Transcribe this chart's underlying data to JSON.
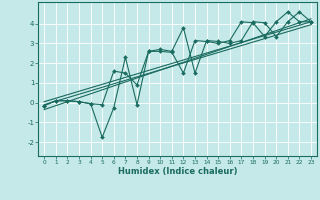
{
  "title": "",
  "xlabel": "Humidex (Indice chaleur)",
  "ylabel": "",
  "bg_color": "#c5e8e8",
  "line_color": "#1a6b60",
  "grid_color": "#ffffff",
  "xlim": [
    -0.5,
    23.5
  ],
  "ylim": [
    -2.7,
    5.1
  ],
  "yticks": [
    -2,
    -1,
    0,
    1,
    2,
    3,
    4
  ],
  "xticks": [
    0,
    1,
    2,
    3,
    4,
    5,
    6,
    7,
    8,
    9,
    10,
    11,
    12,
    13,
    14,
    15,
    16,
    17,
    18,
    19,
    20,
    21,
    22,
    23
  ],
  "line1_x": [
    0,
    1,
    2,
    3,
    4,
    5,
    6,
    7,
    8,
    9,
    10,
    11,
    12,
    13,
    14,
    15,
    16,
    17,
    18,
    19,
    20,
    21,
    22,
    23
  ],
  "line1_y": [
    -0.15,
    0.1,
    0.1,
    0.05,
    -0.05,
    -1.75,
    -0.25,
    2.3,
    -0.1,
    2.6,
    2.7,
    2.6,
    3.8,
    1.5,
    3.15,
    3.1,
    3.0,
    3.15,
    4.1,
    4.05,
    3.35,
    4.1,
    4.6,
    4.1
  ],
  "line2_x": [
    0,
    1,
    2,
    3,
    4,
    5,
    6,
    7,
    8,
    9,
    10,
    11,
    12,
    13,
    14,
    15,
    16,
    17,
    18,
    19,
    20,
    21,
    22,
    23
  ],
  "line2_y": [
    -0.15,
    0.1,
    0.1,
    0.05,
    -0.05,
    -0.1,
    1.6,
    1.5,
    0.9,
    2.6,
    2.6,
    2.55,
    1.5,
    3.15,
    3.1,
    3.0,
    3.15,
    4.1,
    4.05,
    3.35,
    4.1,
    4.6,
    4.1,
    4.1
  ],
  "regression_lines": [
    {
      "x": [
        0,
        23
      ],
      "y": [
        -0.35,
        4.25
      ]
    },
    {
      "x": [
        0,
        23
      ],
      "y": [
        -0.1,
        3.95
      ]
    },
    {
      "x": [
        0,
        23
      ],
      "y": [
        0.05,
        4.1
      ]
    }
  ]
}
